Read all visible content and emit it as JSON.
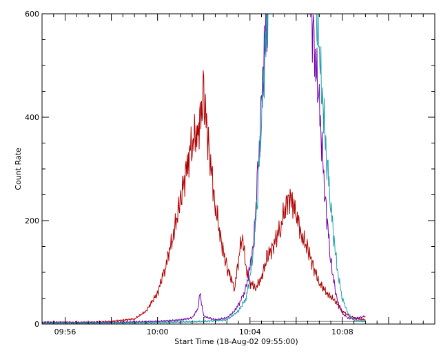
{
  "chart_data": {
    "type": "line",
    "title": "",
    "xlabel": "Start Time (18-Aug-02 09:55:00)",
    "ylabel": "Count Rate",
    "x_unit": "HH:MM",
    "xlim": [
      "09:55",
      "10:12"
    ],
    "ylim": [
      0,
      600
    ],
    "x_tick_labels": [
      "09:56",
      "10:00",
      "10:04",
      "10:08"
    ],
    "x_tick_values": [
      "09:56",
      "10:00",
      "10:04",
      "10:08"
    ],
    "y_tick_labels": [
      "0",
      "200",
      "400",
      "600"
    ],
    "y_tick_values": [
      0,
      200,
      400,
      600
    ],
    "grid": false,
    "legend": "none",
    "baseline": {
      "value": 5,
      "x_start": "10:04",
      "x_end": "10:09",
      "color": "#7f7f7f"
    },
    "series": [
      {
        "color": "#b00000",
        "x": [
          "09:55",
          "09:57",
          "09:58",
          "09:59",
          "09:59:30",
          "10:00",
          "10:00:20",
          "10:00:40",
          "10:01",
          "10:01:20",
          "10:01:30",
          "10:01:45",
          "10:02",
          "10:02:15",
          "10:02:30",
          "10:02:45",
          "10:03",
          "10:03:20",
          "10:03:40",
          "10:03:50",
          "10:04",
          "10:04:15",
          "10:04:30",
          "10:04:45",
          "10:05",
          "10:05:20",
          "10:05:40",
          "10:05:50",
          "10:06",
          "10:06:15",
          "10:06:30",
          "10:06:45",
          "10:07",
          "10:07:20",
          "10:07:40",
          "10:08",
          "10:08:20",
          "10:08:40",
          "10:09"
        ],
        "y": [
          3,
          3,
          5,
          10,
          25,
          60,
          110,
          170,
          240,
          320,
          355,
          370,
          440,
          330,
          230,
          160,
          110,
          70,
          175,
          105,
          80,
          70,
          90,
          130,
          150,
          190,
          245,
          235,
          215,
          170,
          145,
          110,
          80,
          60,
          45,
          25,
          15,
          10,
          8
        ]
      },
      {
        "color": "#7000b0",
        "x": [
          "09:55",
          "09:58",
          "10:00",
          "10:01",
          "10:01:30",
          "10:01:45",
          "10:01:50",
          "10:02",
          "10:02:30",
          "10:03",
          "10:03:20",
          "10:03:40",
          "10:03:50",
          "10:04",
          "10:04:10",
          "10:04:20",
          "10:04:30",
          "10:04:40",
          "10:04:50",
          "10:05",
          "10:05:30",
          "10:06:30",
          "10:06:45",
          "10:07",
          "10:07:15",
          "10:07:30",
          "10:07:45",
          "10:08",
          "10:08:15",
          "10:08:30",
          "10:09"
        ],
        "y": [
          3,
          3,
          5,
          8,
          12,
          30,
          60,
          15,
          8,
          12,
          25,
          50,
          70,
          110,
          160,
          280,
          420,
          560,
          650,
          700,
          700,
          700,
          550,
          420,
          250,
          120,
          50,
          20,
          12,
          10,
          15
        ]
      },
      {
        "color": "#20a0a8",
        "x": [
          "09:55",
          "09:58",
          "10:00",
          "10:02",
          "10:03",
          "10:03:30",
          "10:03:50",
          "10:04",
          "10:04:10",
          "10:04:20",
          "10:04:30",
          "10:04:40",
          "10:04:50",
          "10:05",
          "10:05:30",
          "10:06",
          "10:06:45",
          "10:06:55",
          "10:07",
          "10:07:10",
          "10:07:20",
          "10:07:30",
          "10:07:40",
          "10:07:50",
          "10:08",
          "10:08:15",
          "10:08:30",
          "10:09"
        ],
        "y": [
          2,
          2,
          3,
          5,
          8,
          25,
          50,
          90,
          150,
          260,
          400,
          540,
          640,
          700,
          700,
          700,
          700,
          600,
          520,
          420,
          320,
          230,
          150,
          90,
          50,
          20,
          8,
          5
        ]
      }
    ]
  }
}
